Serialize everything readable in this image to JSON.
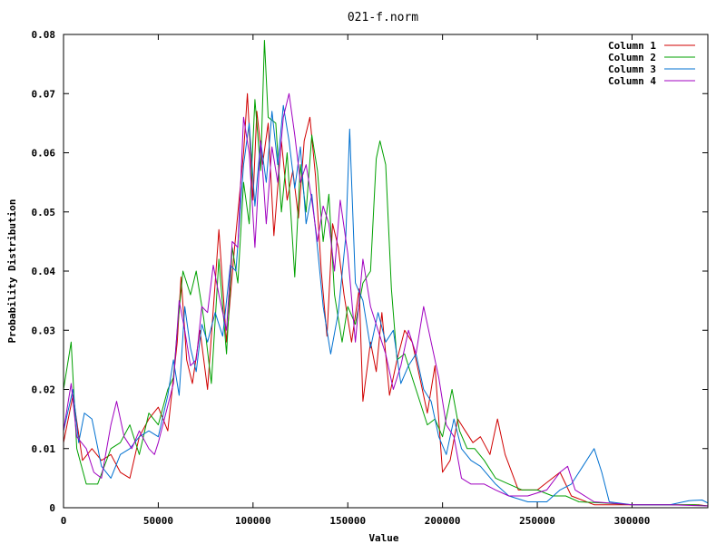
{
  "chart_data": {
    "type": "line",
    "title": "021-f.norm",
    "xlabel": "Value",
    "ylabel": "Probability Distribution",
    "xlim": [
      0,
      340000
    ],
    "ylim": [
      0,
      0.08
    ],
    "x_ticks": [
      0,
      50000,
      100000,
      150000,
      200000,
      250000,
      300000
    ],
    "x_tick_labels": [
      "0",
      "50000",
      "100000",
      "150000",
      "200000",
      "250000",
      "300000"
    ],
    "y_ticks": [
      0,
      0.01,
      0.02,
      0.03,
      0.04,
      0.05,
      0.06,
      0.07,
      0.08
    ],
    "y_tick_labels": [
      "0",
      "0.01",
      "0.02",
      "0.03",
      "0.04",
      "0.05",
      "0.06",
      "0.07",
      "0.08"
    ],
    "grid": false,
    "legend_position": "top-right",
    "series": [
      {
        "name": "Column 1",
        "color": "#d00000",
        "points": [
          [
            0,
            0.011
          ],
          [
            5000,
            0.019
          ],
          [
            10000,
            0.008
          ],
          [
            15000,
            0.01
          ],
          [
            20000,
            0.008
          ],
          [
            25000,
            0.009
          ],
          [
            30000,
            0.006
          ],
          [
            35000,
            0.005
          ],
          [
            40000,
            0.012
          ],
          [
            45000,
            0.015
          ],
          [
            50000,
            0.017
          ],
          [
            55000,
            0.013
          ],
          [
            60000,
            0.028
          ],
          [
            62000,
            0.039
          ],
          [
            65000,
            0.025
          ],
          [
            68000,
            0.021
          ],
          [
            72000,
            0.03
          ],
          [
            76000,
            0.02
          ],
          [
            80000,
            0.038
          ],
          [
            82000,
            0.047
          ],
          [
            86000,
            0.028
          ],
          [
            90000,
            0.043
          ],
          [
            95000,
            0.06
          ],
          [
            97000,
            0.07
          ],
          [
            100000,
            0.052
          ],
          [
            102000,
            0.067
          ],
          [
            105000,
            0.058
          ],
          [
            108000,
            0.065
          ],
          [
            111000,
            0.046
          ],
          [
            115000,
            0.062
          ],
          [
            118000,
            0.052
          ],
          [
            121000,
            0.057
          ],
          [
            124000,
            0.049
          ],
          [
            127000,
            0.062
          ],
          [
            130000,
            0.066
          ],
          [
            133000,
            0.056
          ],
          [
            136000,
            0.04
          ],
          [
            139000,
            0.029
          ],
          [
            142000,
            0.048
          ],
          [
            145000,
            0.044
          ],
          [
            148000,
            0.036
          ],
          [
            152000,
            0.028
          ],
          [
            156000,
            0.037
          ],
          [
            158000,
            0.018
          ],
          [
            162000,
            0.028
          ],
          [
            165000,
            0.023
          ],
          [
            168000,
            0.033
          ],
          [
            172000,
            0.019
          ],
          [
            176000,
            0.025
          ],
          [
            180000,
            0.03
          ],
          [
            184000,
            0.028
          ],
          [
            188000,
            0.022
          ],
          [
            192000,
            0.016
          ],
          [
            196000,
            0.024
          ],
          [
            200000,
            0.006
          ],
          [
            204000,
            0.008
          ],
          [
            208000,
            0.015
          ],
          [
            212000,
            0.013
          ],
          [
            216000,
            0.011
          ],
          [
            220000,
            0.012
          ],
          [
            225000,
            0.009
          ],
          [
            229000,
            0.015
          ],
          [
            233000,
            0.009
          ],
          [
            240000,
            0.003
          ],
          [
            250000,
            0.003
          ],
          [
            262000,
            0.006
          ],
          [
            268000,
            0.002
          ],
          [
            280000,
            0.0005
          ],
          [
            300000,
            0.0005
          ],
          [
            320000,
            0.0005
          ],
          [
            335000,
            0.0005
          ],
          [
            340000,
            0.0003
          ]
        ]
      },
      {
        "name": "Column 2",
        "color": "#00a000",
        "points": [
          [
            0,
            0.02
          ],
          [
            3000,
            0.026
          ],
          [
            4000,
            0.028
          ],
          [
            7000,
            0.01
          ],
          [
            12000,
            0.004
          ],
          [
            18000,
            0.004
          ],
          [
            25000,
            0.01
          ],
          [
            30000,
            0.011
          ],
          [
            35000,
            0.014
          ],
          [
            40000,
            0.009
          ],
          [
            45000,
            0.016
          ],
          [
            50000,
            0.014
          ],
          [
            55000,
            0.02
          ],
          [
            58000,
            0.022
          ],
          [
            60000,
            0.03
          ],
          [
            63000,
            0.04
          ],
          [
            67000,
            0.036
          ],
          [
            70000,
            0.04
          ],
          [
            74000,
            0.032
          ],
          [
            78000,
            0.021
          ],
          [
            82000,
            0.042
          ],
          [
            86000,
            0.026
          ],
          [
            89000,
            0.044
          ],
          [
            92000,
            0.038
          ],
          [
            95000,
            0.055
          ],
          [
            98000,
            0.048
          ],
          [
            101000,
            0.069
          ],
          [
            104000,
            0.057
          ],
          [
            106000,
            0.079
          ],
          [
            108000,
            0.066
          ],
          [
            112000,
            0.065
          ],
          [
            115000,
            0.05
          ],
          [
            118000,
            0.06
          ],
          [
            122000,
            0.039
          ],
          [
            125000,
            0.058
          ],
          [
            128000,
            0.05
          ],
          [
            131000,
            0.063
          ],
          [
            134000,
            0.057
          ],
          [
            137000,
            0.045
          ],
          [
            140000,
            0.053
          ],
          [
            143000,
            0.036
          ],
          [
            147000,
            0.028
          ],
          [
            150000,
            0.034
          ],
          [
            154000,
            0.031
          ],
          [
            158000,
            0.038
          ],
          [
            162000,
            0.04
          ],
          [
            165000,
            0.059
          ],
          [
            167000,
            0.062
          ],
          [
            170000,
            0.058
          ],
          [
            173000,
            0.037
          ],
          [
            176000,
            0.025
          ],
          [
            180000,
            0.026
          ],
          [
            184000,
            0.022
          ],
          [
            188000,
            0.018
          ],
          [
            192000,
            0.014
          ],
          [
            196000,
            0.015
          ],
          [
            200000,
            0.012
          ],
          [
            205000,
            0.02
          ],
          [
            209000,
            0.013
          ],
          [
            213000,
            0.01
          ],
          [
            217000,
            0.01
          ],
          [
            222000,
            0.008
          ],
          [
            228000,
            0.005
          ],
          [
            235000,
            0.004
          ],
          [
            242000,
            0.003
          ],
          [
            250000,
            0.003
          ],
          [
            258000,
            0.002
          ],
          [
            265000,
            0.002
          ],
          [
            272000,
            0.001
          ],
          [
            285000,
            0.0008
          ],
          [
            300000,
            0.0005
          ],
          [
            320000,
            0.0005
          ],
          [
            333000,
            0.0005
          ],
          [
            340000,
            0.0003
          ]
        ]
      },
      {
        "name": "Column 3",
        "color": "#0070d0",
        "points": [
          [
            0,
            0.013
          ],
          [
            5000,
            0.02
          ],
          [
            8000,
            0.011
          ],
          [
            11000,
            0.016
          ],
          [
            15000,
            0.015
          ],
          [
            20000,
            0.007
          ],
          [
            25000,
            0.005
          ],
          [
            30000,
            0.009
          ],
          [
            35000,
            0.01
          ],
          [
            40000,
            0.012
          ],
          [
            45000,
            0.013
          ],
          [
            50000,
            0.012
          ],
          [
            55000,
            0.019
          ],
          [
            58000,
            0.025
          ],
          [
            61000,
            0.019
          ],
          [
            64000,
            0.034
          ],
          [
            67000,
            0.027
          ],
          [
            70000,
            0.023
          ],
          [
            73000,
            0.031
          ],
          [
            76000,
            0.028
          ],
          [
            80000,
            0.033
          ],
          [
            84000,
            0.029
          ],
          [
            88000,
            0.041
          ],
          [
            91000,
            0.04
          ],
          [
            95000,
            0.058
          ],
          [
            98000,
            0.065
          ],
          [
            101000,
            0.051
          ],
          [
            104000,
            0.062
          ],
          [
            107000,
            0.055
          ],
          [
            110000,
            0.067
          ],
          [
            113000,
            0.058
          ],
          [
            116000,
            0.068
          ],
          [
            119000,
            0.062
          ],
          [
            122000,
            0.054
          ],
          [
            125000,
            0.061
          ],
          [
            128000,
            0.048
          ],
          [
            131000,
            0.053
          ],
          [
            134000,
            0.044
          ],
          [
            137000,
            0.034
          ],
          [
            141000,
            0.026
          ],
          [
            145000,
            0.033
          ],
          [
            149000,
            0.046
          ],
          [
            151000,
            0.064
          ],
          [
            154000,
            0.038
          ],
          [
            158000,
            0.035
          ],
          [
            162000,
            0.027
          ],
          [
            166000,
            0.033
          ],
          [
            170000,
            0.028
          ],
          [
            174000,
            0.03
          ],
          [
            178000,
            0.021
          ],
          [
            182000,
            0.024
          ],
          [
            186000,
            0.026
          ],
          [
            190000,
            0.02
          ],
          [
            194000,
            0.018
          ],
          [
            198000,
            0.012
          ],
          [
            202000,
            0.009
          ],
          [
            206000,
            0.015
          ],
          [
            210000,
            0.01
          ],
          [
            215000,
            0.008
          ],
          [
            220000,
            0.007
          ],
          [
            228000,
            0.004
          ],
          [
            235000,
            0.002
          ],
          [
            245000,
            0.001
          ],
          [
            255000,
            0.001
          ],
          [
            262000,
            0.003
          ],
          [
            268000,
            0.004
          ],
          [
            274000,
            0.007
          ],
          [
            280000,
            0.01
          ],
          [
            284000,
            0.006
          ],
          [
            288000,
            0.001
          ],
          [
            300000,
            0.0005
          ],
          [
            320000,
            0.0005
          ],
          [
            330000,
            0.0012
          ],
          [
            337000,
            0.0013
          ],
          [
            340000,
            0.0008
          ]
        ]
      },
      {
        "name": "Column 4",
        "color": "#a000c0",
        "points": [
          [
            0,
            0.013
          ],
          [
            4000,
            0.021
          ],
          [
            7000,
            0.012
          ],
          [
            12000,
            0.01
          ],
          [
            16000,
            0.006
          ],
          [
            20000,
            0.005
          ],
          [
            25000,
            0.014
          ],
          [
            28000,
            0.018
          ],
          [
            32000,
            0.012
          ],
          [
            36000,
            0.01
          ],
          [
            40000,
            0.013
          ],
          [
            45000,
            0.01
          ],
          [
            48000,
            0.009
          ],
          [
            50000,
            0.011
          ],
          [
            54000,
            0.016
          ],
          [
            58000,
            0.021
          ],
          [
            61000,
            0.035
          ],
          [
            64000,
            0.03
          ],
          [
            67000,
            0.024
          ],
          [
            70000,
            0.025
          ],
          [
            73000,
            0.034
          ],
          [
            76000,
            0.033
          ],
          [
            79000,
            0.041
          ],
          [
            82000,
            0.036
          ],
          [
            86000,
            0.03
          ],
          [
            89000,
            0.045
          ],
          [
            92000,
            0.044
          ],
          [
            95000,
            0.066
          ],
          [
            98000,
            0.06
          ],
          [
            101000,
            0.044
          ],
          [
            104000,
            0.062
          ],
          [
            107000,
            0.048
          ],
          [
            110000,
            0.061
          ],
          [
            113000,
            0.055
          ],
          [
            116000,
            0.066
          ],
          [
            119000,
            0.07
          ],
          [
            122000,
            0.063
          ],
          [
            125000,
            0.055
          ],
          [
            128000,
            0.058
          ],
          [
            131000,
            0.052
          ],
          [
            134000,
            0.045
          ],
          [
            137000,
            0.051
          ],
          [
            140000,
            0.048
          ],
          [
            143000,
            0.04
          ],
          [
            146000,
            0.052
          ],
          [
            150000,
            0.043
          ],
          [
            154000,
            0.028
          ],
          [
            158000,
            0.042
          ],
          [
            162000,
            0.034
          ],
          [
            166000,
            0.03
          ],
          [
            170000,
            0.026
          ],
          [
            174000,
            0.02
          ],
          [
            178000,
            0.024
          ],
          [
            182000,
            0.03
          ],
          [
            186000,
            0.026
          ],
          [
            190000,
            0.034
          ],
          [
            194000,
            0.028
          ],
          [
            198000,
            0.022
          ],
          [
            202000,
            0.014
          ],
          [
            206000,
            0.012
          ],
          [
            210000,
            0.005
          ],
          [
            215000,
            0.004
          ],
          [
            222000,
            0.004
          ],
          [
            228000,
            0.003
          ],
          [
            235000,
            0.002
          ],
          [
            245000,
            0.002
          ],
          [
            255000,
            0.003
          ],
          [
            262000,
            0.006
          ],
          [
            266000,
            0.007
          ],
          [
            270000,
            0.003
          ],
          [
            280000,
            0.001
          ],
          [
            300000,
            0.0005
          ],
          [
            320000,
            0.0005
          ],
          [
            340000,
            0.0003
          ]
        ]
      }
    ]
  }
}
